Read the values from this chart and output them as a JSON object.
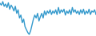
{
  "line_color": "#3399cc",
  "background_color": "#ffffff",
  "linewidth": 1.0,
  "y_values": [
    55,
    52,
    58,
    50,
    54,
    48,
    56,
    45,
    52,
    48,
    42,
    50,
    38,
    44,
    30,
    35,
    22,
    28,
    15,
    10,
    5,
    2,
    8,
    18,
    28,
    35,
    30,
    38,
    25,
    32,
    38,
    30,
    42,
    35,
    42,
    38,
    44,
    36,
    42,
    38,
    44,
    36,
    48,
    38,
    44,
    40,
    45,
    35,
    42,
    38,
    44,
    36,
    48,
    40,
    44,
    38,
    42,
    36,
    44,
    38,
    45,
    36,
    42,
    38,
    45,
    36,
    42,
    40,
    44,
    36
  ]
}
